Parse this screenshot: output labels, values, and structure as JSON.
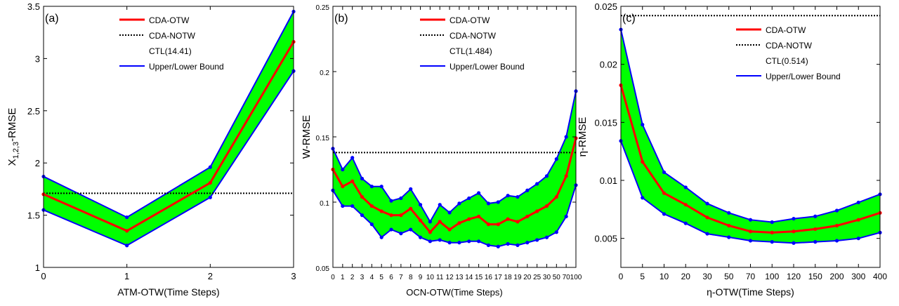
{
  "chart_data": [
    {
      "type": "line",
      "panel_label": "(a)",
      "xlabel": "ATM-OTW(Time Steps)",
      "ylabel": "X1,2,3-RMSE",
      "ylabel_main": "X",
      "ylabel_sub": "1,2,3",
      "ylabel_rest": "-RMSE",
      "categories": [
        "0",
        "1",
        "2",
        "3"
      ],
      "ylim": [
        1,
        3.5
      ],
      "yticks": [
        "1",
        "1.5",
        "2",
        "2.5",
        "3",
        "3.5"
      ],
      "grid": false,
      "legend_position": "top-right",
      "legend": [
        "CDA-OTW",
        "CDA-NOTW",
        "CTL(14.41)",
        "Upper/Lower Bound"
      ],
      "series": [
        {
          "name": "CDA-OTW",
          "values": [
            1.7,
            1.35,
            1.81,
            3.16
          ],
          "color": "#ff0000"
        },
        {
          "name": "Upper Bound",
          "values": [
            1.87,
            1.48,
            1.96,
            3.45
          ],
          "color": "#0000ff"
        },
        {
          "name": "Lower Bound",
          "values": [
            1.55,
            1.21,
            1.67,
            2.88
          ],
          "color": "#0000ff"
        }
      ],
      "reference_line": {
        "name": "CDA-NOTW",
        "value": 1.71
      },
      "band_color": "#00ff00"
    },
    {
      "type": "line",
      "panel_label": "(b)",
      "xlabel": "OCN-OTW(Time Steps)",
      "ylabel": "W-RMSE",
      "categories": [
        "0",
        "1",
        "2",
        "3",
        "4",
        "5",
        "6",
        "7",
        "8",
        "9",
        "10",
        "11",
        "12",
        "13",
        "14",
        "15",
        "16",
        "17",
        "18",
        "19",
        "20",
        "25",
        "30",
        "50",
        "70",
        "100"
      ],
      "ylim": [
        0.05,
        0.25
      ],
      "yticks": [
        "0.05",
        "0.1",
        "0.15",
        "0.2",
        "0.25"
      ],
      "grid": false,
      "legend_position": "top-right",
      "legend": [
        "CDA-OTW",
        "CDA-NOTW",
        "CTL(1.484)",
        "Upper/Lower Bound"
      ],
      "series": [
        {
          "name": "CDA-OTW",
          "values": [
            0.125,
            0.112,
            0.116,
            0.104,
            0.097,
            0.093,
            0.09,
            0.09,
            0.095,
            0.086,
            0.077,
            0.085,
            0.079,
            0.084,
            0.087,
            0.089,
            0.083,
            0.083,
            0.087,
            0.085,
            0.089,
            0.093,
            0.097,
            0.104,
            0.12,
            0.149
          ],
          "color": "#ff0000"
        },
        {
          "name": "Upper Bound",
          "values": [
            0.141,
            0.125,
            0.134,
            0.118,
            0.112,
            0.112,
            0.101,
            0.103,
            0.11,
            0.098,
            0.085,
            0.098,
            0.092,
            0.099,
            0.103,
            0.107,
            0.099,
            0.1,
            0.105,
            0.104,
            0.109,
            0.114,
            0.12,
            0.133,
            0.15,
            0.185
          ],
          "color": "#0000ff"
        },
        {
          "name": "Lower Bound",
          "values": [
            0.109,
            0.097,
            0.097,
            0.09,
            0.083,
            0.073,
            0.079,
            0.076,
            0.079,
            0.073,
            0.07,
            0.071,
            0.069,
            0.069,
            0.07,
            0.07,
            0.067,
            0.066,
            0.068,
            0.067,
            0.069,
            0.071,
            0.073,
            0.077,
            0.089,
            0.113
          ],
          "color": "#0000ff"
        }
      ],
      "reference_line": {
        "name": "CDA-NOTW",
        "value": 0.138
      },
      "band_color": "#00ff00"
    },
    {
      "type": "line",
      "panel_label": "(c)",
      "xlabel": "η-OTW(Time Steps)",
      "ylabel": "η-RMSE",
      "categories": [
        "0",
        "5",
        "10",
        "20",
        "30",
        "50",
        "70",
        "100",
        "120",
        "150",
        "200",
        "300",
        "400"
      ],
      "ylim": [
        0.0025,
        0.025
      ],
      "yticks": [
        "0.005",
        "0.01",
        "0.015",
        "0.02",
        "0.025"
      ],
      "ytick_values": [
        0.005,
        0.01,
        0.015,
        0.02,
        0.025
      ],
      "grid": false,
      "legend_position": "top-right",
      "legend": [
        "CDA-OTW",
        "CDA-NOTW",
        "CTL(0.514)",
        "Upper/Lower Bound"
      ],
      "series": [
        {
          "name": "CDA-OTW",
          "values": [
            0.0182,
            0.0116,
            0.0089,
            0.0079,
            0.0068,
            0.0061,
            0.0056,
            0.0055,
            0.0056,
            0.0058,
            0.0061,
            0.0066,
            0.0072
          ],
          "color": "#ff0000"
        },
        {
          "name": "Upper Bound",
          "values": [
            0.023,
            0.0148,
            0.0107,
            0.0094,
            0.008,
            0.0072,
            0.0066,
            0.0064,
            0.0067,
            0.0069,
            0.0074,
            0.0081,
            0.0088
          ],
          "color": "#0000ff"
        },
        {
          "name": "Lower Bound",
          "values": [
            0.0134,
            0.0085,
            0.0071,
            0.0063,
            0.0054,
            0.0051,
            0.0048,
            0.0047,
            0.0046,
            0.0047,
            0.0048,
            0.005,
            0.0055
          ],
          "color": "#0000ff"
        }
      ],
      "reference_line": {
        "name": "CDA-NOTW",
        "value": 0.0242
      },
      "band_color": "#00ff00"
    }
  ]
}
